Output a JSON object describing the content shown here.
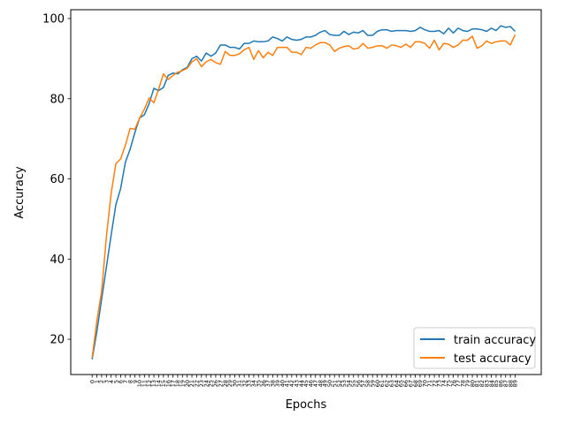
{
  "chart_data": {
    "type": "line",
    "title": "",
    "xlabel": "Epochs",
    "ylabel": "Accuracy",
    "xlim": [
      -4.5,
      94.5
    ],
    "ylim": [
      11.2,
      102.2
    ],
    "yticks": [
      20,
      40,
      60,
      80,
      100
    ],
    "x": [
      0,
      1,
      2,
      3,
      4,
      5,
      6,
      7,
      8,
      9,
      10,
      11,
      12,
      13,
      14,
      15,
      16,
      17,
      18,
      19,
      20,
      21,
      22,
      23,
      24,
      25,
      26,
      27,
      28,
      29,
      30,
      31,
      32,
      33,
      34,
      35,
      36,
      37,
      38,
      39,
      40,
      41,
      42,
      43,
      44,
      45,
      46,
      47,
      48,
      49,
      50,
      51,
      52,
      53,
      54,
      55,
      56,
      57,
      58,
      59,
      60,
      61,
      62,
      63,
      64,
      65,
      66,
      67,
      68,
      69,
      70,
      71,
      72,
      73,
      74,
      75,
      76,
      77,
      78,
      79,
      80,
      81,
      82,
      83,
      84,
      85,
      86,
      87,
      88,
      89
    ],
    "grid": false,
    "legend_position": "lower-right",
    "series": [
      {
        "name": "train accuracy",
        "color": "#1f77b4",
        "values": [
          15,
          22,
          30,
          38,
          46,
          53.6,
          57.6,
          64.2,
          67.4,
          71.6,
          75.2,
          76,
          78.8,
          82.6,
          82,
          82.8,
          85.8,
          86.4,
          86.2,
          87.2,
          87.8,
          90,
          90.6,
          89.4,
          91.4,
          90.6,
          91.4,
          93.4,
          93.4,
          92.8,
          92.8,
          92.4,
          93.8,
          93.8,
          94.4,
          94.2,
          94.2,
          94.4,
          95.4,
          95,
          94.4,
          95.4,
          94.8,
          94.6,
          94.8,
          95.4,
          95.4,
          95.8,
          96.6,
          97,
          96,
          95.8,
          95.8,
          96.8,
          96,
          96.6,
          96.4,
          97,
          95.8,
          95.8,
          96.8,
          97.2,
          97.2,
          96.8,
          97,
          97,
          97,
          96.8,
          97,
          97.8,
          97.2,
          96.8,
          96.8,
          97,
          96.2,
          97.6,
          96.4,
          97.6,
          97,
          96.8,
          97.4,
          97.4,
          97.2,
          96.8,
          97.6,
          97,
          98.2,
          97.8,
          98,
          96.8
        ]
      },
      {
        "name": "test accuracy",
        "color": "#ff7f0e",
        "values": [
          15.4,
          24.6,
          32,
          45.6,
          56.4,
          63.8,
          65,
          68.4,
          72.6,
          72.4,
          75.2,
          77.4,
          80.2,
          79,
          82.4,
          86.2,
          84.8,
          85.8,
          86.6,
          87,
          87.6,
          89.2,
          90,
          88,
          89.2,
          89.8,
          89,
          88.6,
          91.8,
          90.8,
          90.8,
          91.2,
          92.2,
          92.8,
          89.8,
          92,
          90.2,
          91.6,
          90.8,
          92.8,
          92.8,
          92.8,
          91.6,
          91.6,
          91,
          92.8,
          92.6,
          93.4,
          94,
          94,
          93.4,
          91.8,
          92.6,
          93,
          93.2,
          92.4,
          92.6,
          93.8,
          92.6,
          92.8,
          93.2,
          93.2,
          92.6,
          93.4,
          93.2,
          92.8,
          93.6,
          92.8,
          94.2,
          94.2,
          93.8,
          92.6,
          94.6,
          92.2,
          93.8,
          93.6,
          92.8,
          93.4,
          94.6,
          94.6,
          95.6,
          92.6,
          93.2,
          94.4,
          93.8,
          94.2,
          94.4,
          94.4,
          93.4,
          96
        ]
      }
    ]
  }
}
